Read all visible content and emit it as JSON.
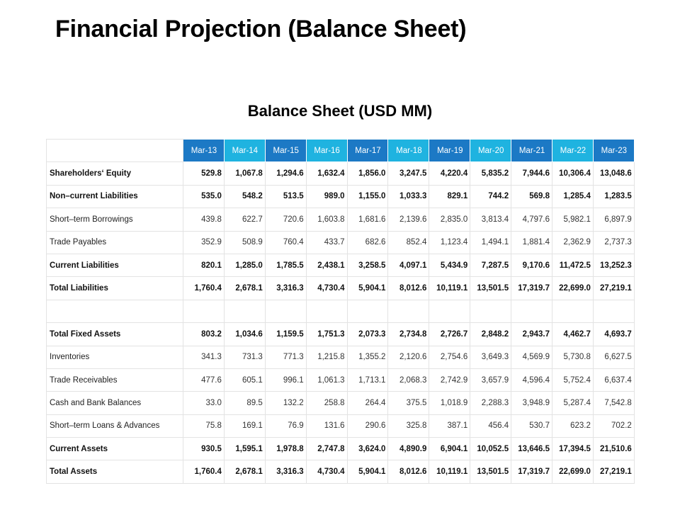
{
  "title": "Financial Projection (Balance Sheet)",
  "table_title": "Balance Sheet (USD MM)",
  "header_colors": {
    "blue": "#1c79c5",
    "teal": "#1fb3e0"
  },
  "columns": [
    "Mar-13",
    "Mar-14",
    "Mar-15",
    "Mar-16",
    "Mar-17",
    "Mar-18",
    "Mar-19",
    "Mar-20",
    "Mar-21",
    "Mar-22",
    "Mar-23"
  ],
  "rows": [
    {
      "label": "Shareholders‘ Equity",
      "bold": true,
      "values": [
        "529.8",
        "1,067.8",
        "1,294.6",
        "1,632.4",
        "1,856.0",
        "3,247.5",
        "4,220.4",
        "5,835.2",
        "7,944.6",
        "10,306.4",
        "13,048.6"
      ]
    },
    {
      "label": "Non–current Liabilities",
      "bold": true,
      "values": [
        "535.0",
        "548.2",
        "513.5",
        "989.0",
        "1,155.0",
        "1,033.3",
        "829.1",
        "744.2",
        "569.8",
        "1,285.4",
        "1,283.5"
      ]
    },
    {
      "label": "Short–term Borrowings",
      "bold": false,
      "values": [
        "439.8",
        "622.7",
        "720.6",
        "1,603.8",
        "1,681.6",
        "2,139.6",
        "2,835.0",
        "3,813.4",
        "4,797.6",
        "5,982.1",
        "6,897.9"
      ]
    },
    {
      "label": "Trade Payables",
      "bold": false,
      "values": [
        "352.9",
        "508.9",
        "760.4",
        "433.7",
        "682.6",
        "852.4",
        "1,123.4",
        "1,494.1",
        "1,881.4",
        "2,362.9",
        "2,737.3"
      ]
    },
    {
      "label": "Current Liabilities",
      "bold": true,
      "values": [
        "820.1",
        "1,285.0",
        "1,785.5",
        "2,438.1",
        "3,258.5",
        "4,097.1",
        "5,434.9",
        "7,287.5",
        "9,170.6",
        "11,472.5",
        "13,252.3"
      ]
    },
    {
      "label": "Total Liabilities",
      "bold": true,
      "values": [
        "1,760.4",
        "2,678.1",
        "3,316.3",
        "4,730.4",
        "5,904.1",
        "8,012.6",
        "10,119.1",
        "13,501.5",
        "17,319.7",
        "22,699.0",
        "27,219.1"
      ]
    },
    {
      "label": "",
      "bold": false,
      "spacer": true,
      "values": [
        "",
        "",
        "",
        "",
        "",
        "",
        "",
        "",
        "",
        "",
        ""
      ]
    },
    {
      "label": "Total Fixed Assets",
      "bold": true,
      "values": [
        "803.2",
        "1,034.6",
        "1,159.5",
        "1,751.3",
        "2,073.3",
        "2,734.8",
        "2,726.7",
        "2,848.2",
        "2,943.7",
        "4,462.7",
        "4,693.7"
      ]
    },
    {
      "label": "Inventories",
      "bold": false,
      "values": [
        "341.3",
        "731.3",
        "771.3",
        "1,215.8",
        "1,355.2",
        "2,120.6",
        "2,754.6",
        "3,649.3",
        "4,569.9",
        "5,730.8",
        "6,627.5"
      ]
    },
    {
      "label": "Trade Receivables",
      "bold": false,
      "values": [
        "477.6",
        "605.1",
        "996.1",
        "1,061.3",
        "1,713.1",
        "2,068.3",
        "2,742.9",
        "3,657.9",
        "4,596.4",
        "5,752.4",
        "6,637.4"
      ]
    },
    {
      "label": "Cash and Bank Balances",
      "bold": false,
      "values": [
        "33.0",
        "89.5",
        "132.2",
        "258.8",
        "264.4",
        "375.5",
        "1,018.9",
        "2,288.3",
        "3,948.9",
        "5,287.4",
        "7,542.8"
      ]
    },
    {
      "label": "Short–term Loans & Advances",
      "bold": false,
      "values": [
        "75.8",
        "169.1",
        "76.9",
        "131.6",
        "290.6",
        "325.8",
        "387.1",
        "456.4",
        "530.7",
        "623.2",
        "702.2"
      ]
    },
    {
      "label": "Current Assets",
      "bold": true,
      "values": [
        "930.5",
        "1,595.1",
        "1,978.8",
        "2,747.8",
        "3,624.0",
        "4,890.9",
        "6,904.1",
        "10,052.5",
        "13,646.5",
        "17,394.5",
        "21,510.6"
      ]
    },
    {
      "label": "Total Assets",
      "bold": true,
      "values": [
        "1,760.4",
        "2,678.1",
        "3,316.3",
        "4,730.4",
        "5,904.1",
        "8,012.6",
        "10,119.1",
        "13,501.5",
        "17,319.7",
        "22,699.0",
        "27,219.1"
      ]
    }
  ]
}
